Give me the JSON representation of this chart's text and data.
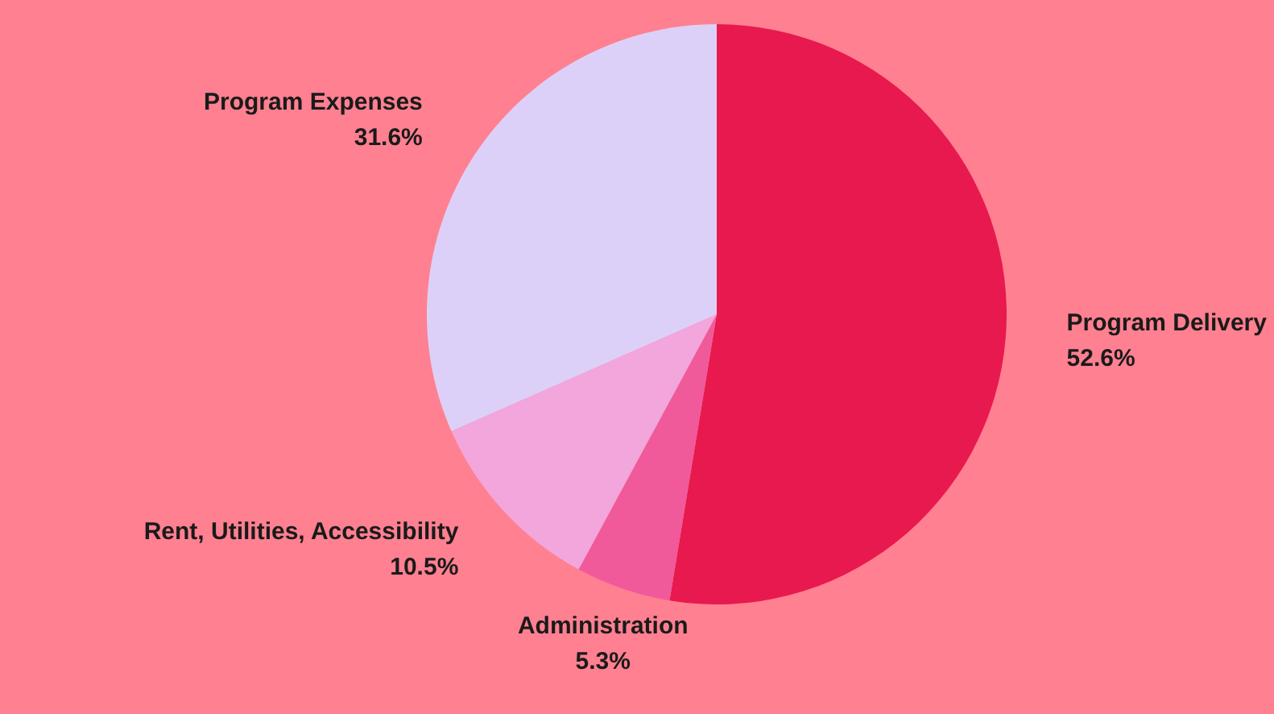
{
  "chart_data": {
    "type": "pie",
    "categories": [
      "Program Delivery",
      "Administration",
      "Rent, Utilities, Accessibility",
      "Program Expenses"
    ],
    "values": [
      52.6,
      5.3,
      10.5,
      31.6
    ],
    "value_labels": [
      "52.6%",
      "5.3%",
      "10.5%",
      "31.6%"
    ],
    "colors": [
      "#e8194f",
      "#f05a9a",
      "#f2a6dc",
      "#ddd0f8"
    ]
  }
}
